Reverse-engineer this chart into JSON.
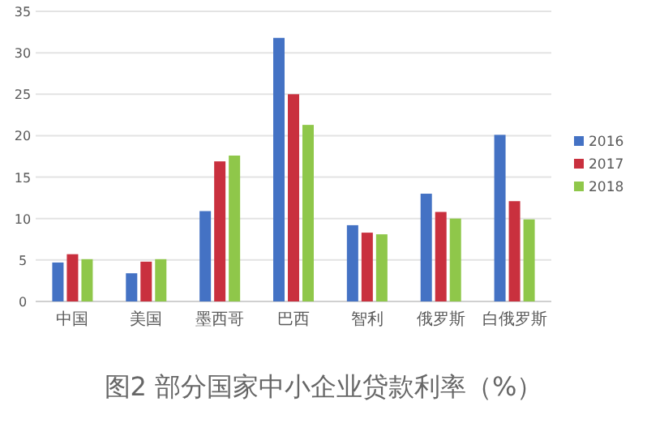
{
  "chart_data": {
    "type": "bar",
    "title": "图2 部分国家中小企业贷款利率（%）",
    "categories": [
      "中国",
      "美国",
      "墨西哥",
      "巴西",
      "智利",
      "俄罗斯",
      "白俄罗斯"
    ],
    "series": [
      {
        "name": "2016",
        "color": "#4472c4",
        "values": [
          4.7,
          3.4,
          10.9,
          31.8,
          9.2,
          13.0,
          20.1
        ]
      },
      {
        "name": "2017",
        "color": "#c9303e",
        "values": [
          5.7,
          4.8,
          16.9,
          25.0,
          8.3,
          10.8,
          12.1
        ]
      },
      {
        "name": "2018",
        "color": "#8fc74a",
        "values": [
          5.1,
          5.1,
          17.6,
          21.3,
          8.1,
          10.0,
          9.9
        ]
      }
    ],
    "ylim": [
      0,
      35
    ],
    "yticks": [
      0,
      5,
      10,
      15,
      20,
      25,
      30,
      35
    ],
    "grid": "y",
    "legend": "right"
  }
}
